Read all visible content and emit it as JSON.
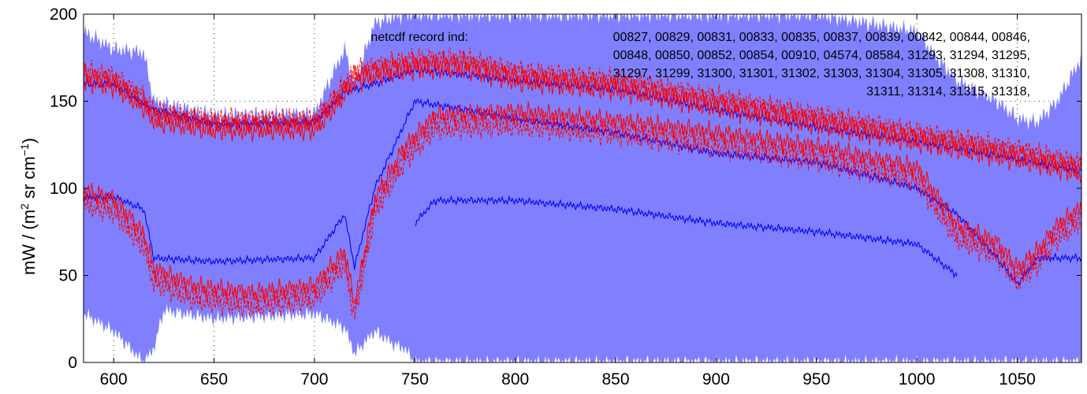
{
  "chart_data": {
    "type": "line",
    "title": "",
    "xlabel": "",
    "ylabel": "mW / (m² sr cm⁻¹)",
    "ylabel_parts": {
      "prefix": "mW / (m",
      "sup1": "2",
      "mid": " sr cm",
      "sup2": "−1",
      "suffix": ")"
    },
    "xlim": [
      585,
      1082
    ],
    "ylim": [
      0,
      200
    ],
    "xticks": [
      600,
      650,
      700,
      750,
      800,
      850,
      900,
      950,
      1000,
      1050
    ],
    "yticks": [
      0,
      50,
      100,
      150,
      200
    ],
    "grid": "dotted",
    "colors": {
      "band_fill": "#8080ff",
      "mean_line": "#0000ff",
      "spectra": "#ff0000"
    },
    "annotation": {
      "label": "netcdf record ind:",
      "lines": [
        "00827, 00829, 00831, 00833, 00835, 00837, 00839, 00842, 00844, 00846,",
        "00848, 00850, 00852, 00854, 00910, 04574, 08584, 31293, 31294, 31295,",
        "31297, 31299, 31300, 31301, 31302, 31303, 31304, 31305, 31308, 31310,",
        "31311, 31314, 31315, 31318,"
      ]
    },
    "series": [
      {
        "role": "band-upper",
        "x": [
          585,
          600,
          615,
          620,
          650,
          700,
          715,
          720,
          730,
          745,
          750,
          775,
          800,
          850,
          900,
          950,
          1000,
          1010,
          1020,
          1040,
          1050,
          1060,
          1070,
          1082
        ],
        "y": [
          190,
          180,
          178,
          150,
          142,
          143,
          180,
          160,
          195,
          200,
          200,
          200,
          200,
          200,
          200,
          200,
          190,
          175,
          162,
          150,
          140,
          138,
          150,
          175
        ]
      },
      {
        "role": "band-lower",
        "x": [
          585,
          600,
          615,
          620,
          625,
          650,
          700,
          715,
          720,
          730,
          740,
          745,
          750,
          800,
          850,
          900,
          950,
          1000,
          1050,
          1082
        ],
        "y": [
          28,
          18,
          0,
          8,
          30,
          25,
          28,
          20,
          5,
          18,
          10,
          8,
          0,
          0,
          0,
          0,
          0,
          0,
          0,
          0
        ]
      },
      {
        "role": "mean-upper",
        "x": [
          585,
          600,
          620,
          650,
          700,
          715,
          730,
          750,
          800,
          850,
          900,
          950,
          1000,
          1050,
          1082
        ],
        "y": [
          160,
          160,
          145,
          137,
          138,
          155,
          160,
          168,
          162,
          157,
          145,
          135,
          127,
          117,
          110
        ]
      },
      {
        "role": "mean-mid",
        "x": [
          585,
          600,
          615,
          620,
          650,
          700,
          715,
          720,
          730,
          750,
          800,
          850,
          900,
          950,
          1000,
          1020,
          1040,
          1050,
          1060,
          1082
        ],
        "y": [
          95,
          95,
          88,
          60,
          58,
          60,
          85,
          55,
          100,
          150,
          140,
          132,
          120,
          115,
          100,
          85,
          60,
          45,
          60,
          60
        ]
      },
      {
        "role": "mean-lower",
        "x": [
          750,
          760,
          800,
          850,
          900,
          950,
          1000,
          1020
        ],
        "y": [
          80,
          93,
          93,
          88,
          80,
          75,
          68,
          50
        ]
      },
      {
        "role": "spectrum-upper",
        "x": [
          585,
          600,
          615,
          620,
          650,
          700,
          710,
          720,
          730,
          750,
          775,
          800,
          850,
          900,
          950,
          1000,
          1050,
          1082
        ],
        "y": [
          165,
          162,
          150,
          142,
          137,
          137,
          150,
          165,
          168,
          172,
          172,
          165,
          160,
          150,
          140,
          130,
          120,
          112
        ]
      },
      {
        "role": "spectrum-mid",
        "x": [
          585,
          600,
          615,
          620,
          640,
          670,
          700,
          715,
          720,
          730,
          745,
          760,
          800,
          850,
          900,
          950,
          1000,
          1020,
          1040,
          1050,
          1060,
          1070,
          1082
        ],
        "y": [
          95,
          90,
          70,
          50,
          40,
          36,
          40,
          60,
          30,
          90,
          120,
          138,
          140,
          135,
          128,
          120,
          108,
          75,
          65,
          50,
          60,
          75,
          85
        ]
      }
    ]
  }
}
